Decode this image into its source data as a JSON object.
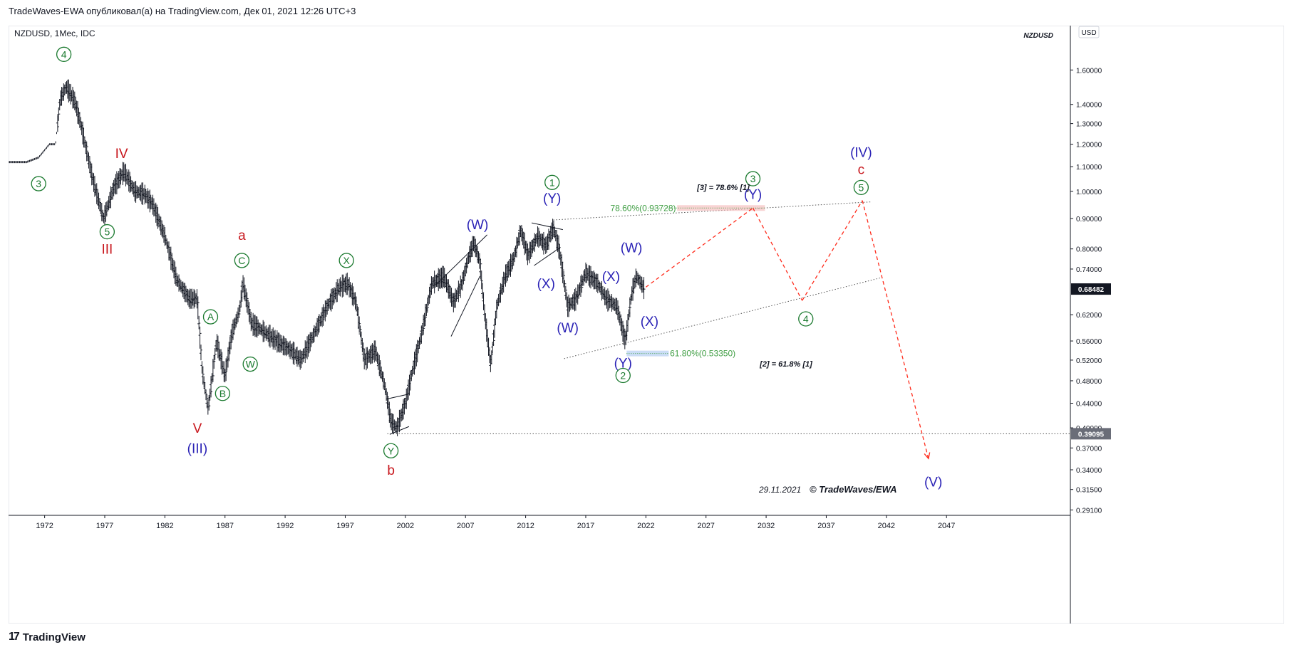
{
  "header": {
    "publisher_line": "TradeWaves-EWA опубликовал(а) на TradingView.com, Дек 01, 2021 12:26 UTC+3"
  },
  "symbol_line": "NZDUSD, 1Мес, IDC",
  "symbol_tag": "NZDUSD",
  "currency_button": "USD",
  "footer": {
    "brand": "TradingView",
    "logo": "17"
  },
  "colors": {
    "green": "#1b7a2f",
    "blue": "#2b23b6",
    "red": "#c8181e",
    "fib_green": "#43a047",
    "forecast": "#ff2a1a",
    "price_tag": "#131722"
  },
  "annotations": {
    "date": "29.11.2021",
    "copyright": "© TradeWaves/EWA",
    "fib_top": "78.60%(0.93728)",
    "fib_top_note": "[3] = 78.6% [1]",
    "fib_bottom": "61.80%(0.53350)",
    "fib_bottom_note": "[2] = 61.8% [1]"
  },
  "chart_data": {
    "type": "candlestick",
    "symbol": "NZDUSD",
    "timeframe": "1Мес",
    "source": "IDC",
    "y_scale": "log",
    "y_range": [
      0.285,
      1.9
    ],
    "x_range": [
      1969.0,
      2057.3
    ],
    "x_ticks": [
      "1972",
      "1977",
      "1982",
      "1987",
      "1992",
      "1997",
      "2002",
      "2007",
      "2012",
      "2017",
      "2022",
      "2027",
      "2032",
      "2037",
      "2042",
      "2047"
    ],
    "y_ticks": [
      "1.60000",
      "1.40000",
      "1.30000",
      "1.20000",
      "1.10000",
      "1.00000",
      "0.90000",
      "0.80000",
      "0.74000",
      "0.62000",
      "0.56000",
      "0.52000",
      "0.48000",
      "0.44000",
      "0.40000",
      "0.37000",
      "0.34000",
      "0.31500",
      "0.29100"
    ],
    "y_tick_values": [
      1.6,
      1.4,
      1.3,
      1.2,
      1.1,
      1.0,
      0.9,
      0.8,
      0.74,
      0.62,
      0.56,
      0.52,
      0.48,
      0.44,
      0.4,
      0.37,
      0.34,
      0.315,
      0.291
    ],
    "last_price": "0.68482",
    "last_price_value": 0.68482,
    "support_price": "0.39095",
    "support_price_value": 0.39095,
    "price_path": [
      [
        1969.0,
        1.12
      ],
      [
        1970.5,
        1.12
      ],
      [
        1971.5,
        1.14
      ],
      [
        1972.4,
        1.2
      ],
      [
        1972.9,
        1.2
      ],
      [
        1973.3,
        1.43
      ],
      [
        1973.8,
        1.5
      ],
      [
        1974.5,
        1.42
      ],
      [
        1975.0,
        1.3
      ],
      [
        1976.0,
        1.05
      ],
      [
        1976.9,
        0.9
      ],
      [
        1977.8,
        1.02
      ],
      [
        1978.6,
        1.08
      ],
      [
        1979.5,
        1.0
      ],
      [
        1980.3,
        0.99
      ],
      [
        1981.0,
        0.95
      ],
      [
        1982.0,
        0.84
      ],
      [
        1983.0,
        0.71
      ],
      [
        1984.0,
        0.66
      ],
      [
        1984.7,
        0.66
      ],
      [
        1985.1,
        0.5
      ],
      [
        1985.6,
        0.43
      ],
      [
        1986.3,
        0.56
      ],
      [
        1987.0,
        0.49
      ],
      [
        1987.6,
        0.58
      ],
      [
        1988.2,
        0.63
      ],
      [
        1988.5,
        0.7
      ],
      [
        1989.2,
        0.6
      ],
      [
        1990.3,
        0.58
      ],
      [
        1991.3,
        0.56
      ],
      [
        1992.5,
        0.54
      ],
      [
        1993.3,
        0.52
      ],
      [
        1994.3,
        0.57
      ],
      [
        1995.5,
        0.64
      ],
      [
        1996.5,
        0.69
      ],
      [
        1997.2,
        0.7
      ],
      [
        1997.9,
        0.65
      ],
      [
        1998.6,
        0.52
      ],
      [
        1999.5,
        0.54
      ],
      [
        2000.3,
        0.47
      ],
      [
        2000.8,
        0.41
      ],
      [
        2001.3,
        0.4
      ],
      [
        2002.0,
        0.44
      ],
      [
        2002.6,
        0.5
      ],
      [
        2003.3,
        0.57
      ],
      [
        2004.2,
        0.7
      ],
      [
        2005.2,
        0.72
      ],
      [
        2006.0,
        0.65
      ],
      [
        2006.7,
        0.7
      ],
      [
        2007.3,
        0.78
      ],
      [
        2007.7,
        0.82
      ],
      [
        2008.2,
        0.76
      ],
      [
        2008.6,
        0.62
      ],
      [
        2009.1,
        0.51
      ],
      [
        2009.6,
        0.64
      ],
      [
        2010.3,
        0.72
      ],
      [
        2011.0,
        0.77
      ],
      [
        2011.6,
        0.86
      ],
      [
        2012.2,
        0.78
      ],
      [
        2013.0,
        0.84
      ],
      [
        2013.7,
        0.81
      ],
      [
        2014.3,
        0.87
      ],
      [
        2014.8,
        0.8
      ],
      [
        2015.5,
        0.64
      ],
      [
        2016.2,
        0.66
      ],
      [
        2017.0,
        0.73
      ],
      [
        2018.0,
        0.7
      ],
      [
        2018.7,
        0.66
      ],
      [
        2019.6,
        0.64
      ],
      [
        2020.1,
        0.58
      ],
      [
        2020.3,
        0.56
      ],
      [
        2020.8,
        0.67
      ],
      [
        2021.2,
        0.72
      ],
      [
        2021.6,
        0.7
      ],
      [
        2021.9,
        0.68482
      ]
    ],
    "forecast_path": [
      [
        2022.0,
        0.69
      ],
      [
        2030.9,
        0.93728
      ],
      [
        2035.0,
        0.655
      ],
      [
        2040.0,
        0.965
      ],
      [
        2045.5,
        0.355
      ]
    ],
    "trendlines": [
      {
        "style": "dotted",
        "from": [
          2014.3,
          0.895
        ],
        "to": [
          2040.8,
          0.96
        ]
      },
      {
        "style": "dotted",
        "from": [
          2015.2,
          0.523
        ],
        "to": [
          2041.5,
          0.715
        ]
      },
      {
        "style": "dotted",
        "from": [
          2000.5,
          0.39095
        ],
        "to": [
          2057.3,
          0.39095
        ]
      },
      {
        "style": "solid",
        "from": [
          2004.5,
          0.695
        ],
        "to": [
          2008.8,
          0.845
        ]
      },
      {
        "style": "solid",
        "from": [
          2005.8,
          0.57
        ],
        "to": [
          2008.2,
          0.72
        ]
      },
      {
        "style": "solid",
        "from": [
          2012.5,
          0.885
        ],
        "to": [
          2015.1,
          0.862
        ]
      },
      {
        "style": "solid",
        "from": [
          2012.7,
          0.75
        ],
        "to": [
          2014.9,
          0.805
        ]
      },
      {
        "style": "solid",
        "from": [
          2000.7,
          0.39
        ],
        "to": [
          2002.3,
          0.402
        ]
      },
      {
        "style": "solid",
        "from": [
          2000.4,
          0.447
        ],
        "to": [
          2002.1,
          0.455
        ]
      }
    ],
    "fib_levels": [
      {
        "label": "78.60%(0.93728)",
        "value": 0.93728
      },
      {
        "label": "61.80%(0.53350)",
        "value": 0.5335
      }
    ],
    "wave_labels": [
      {
        "text": "4",
        "circled": true,
        "color": "green",
        "x": 1973.6,
        "y": 1.7
      },
      {
        "text": "3",
        "circled": true,
        "color": "green",
        "x": 1971.5,
        "y": 1.03
      },
      {
        "text": "IV",
        "circled": false,
        "color": "red",
        "x": 1978.4,
        "y": 1.16
      },
      {
        "text": "5",
        "circled": true,
        "color": "green",
        "x": 1977.2,
        "y": 0.855
      },
      {
        "text": "III",
        "circled": false,
        "color": "red",
        "x": 1977.2,
        "y": 0.8
      },
      {
        "text": "a",
        "circled": false,
        "color": "red",
        "x": 1988.4,
        "y": 0.845
      },
      {
        "text": "C",
        "circled": true,
        "color": "green",
        "x": 1988.4,
        "y": 0.765
      },
      {
        "text": "X",
        "circled": true,
        "color": "green",
        "x": 1997.1,
        "y": 0.765
      },
      {
        "text": "A",
        "circled": true,
        "color": "green",
        "x": 1985.8,
        "y": 0.615
      },
      {
        "text": "W",
        "circled": true,
        "color": "green",
        "x": 1989.1,
        "y": 0.512
      },
      {
        "text": "B",
        "circled": true,
        "color": "green",
        "x": 1986.8,
        "y": 0.457
      },
      {
        "text": "V",
        "circled": false,
        "color": "red",
        "x": 1984.7,
        "y": 0.4
      },
      {
        "text": "(III)",
        "circled": false,
        "color": "blue",
        "x": 1984.7,
        "y": 0.37
      },
      {
        "text": "Y",
        "circled": true,
        "color": "green",
        "x": 2000.8,
        "y": 0.366
      },
      {
        "text": "b",
        "circled": false,
        "color": "red",
        "x": 2000.8,
        "y": 0.34
      },
      {
        "text": "(W)",
        "circled": false,
        "color": "blue",
        "x": 2008.0,
        "y": 0.88
      },
      {
        "text": "1",
        "circled": true,
        "color": "green",
        "x": 2014.2,
        "y": 1.035
      },
      {
        "text": "(Y)",
        "circled": false,
        "color": "blue",
        "x": 2014.2,
        "y": 0.975
      },
      {
        "text": "(X)",
        "circled": false,
        "color": "blue",
        "x": 2013.7,
        "y": 0.7
      },
      {
        "text": "(W)",
        "circled": false,
        "color": "blue",
        "x": 2015.5,
        "y": 0.59
      },
      {
        "text": "(X)",
        "circled": false,
        "color": "blue",
        "x": 2019.1,
        "y": 0.72
      },
      {
        "text": "(W)",
        "circled": false,
        "color": "blue",
        "x": 2020.8,
        "y": 0.805
      },
      {
        "text": "(X)",
        "circled": false,
        "color": "blue",
        "x": 2022.3,
        "y": 0.605
      },
      {
        "text": "(Y)",
        "circled": false,
        "color": "blue",
        "x": 2020.1,
        "y": 0.515
      },
      {
        "text": "2",
        "circled": true,
        "color": "green",
        "x": 2020.1,
        "y": 0.49
      },
      {
        "text": "3",
        "circled": true,
        "color": "green",
        "x": 2030.9,
        "y": 1.05
      },
      {
        "text": "(Y)",
        "circled": false,
        "color": "blue",
        "x": 2030.9,
        "y": 0.99
      },
      {
        "text": "4",
        "circled": true,
        "color": "green",
        "x": 2035.3,
        "y": 0.61
      },
      {
        "text": "(IV)",
        "circled": false,
        "color": "blue",
        "x": 2039.9,
        "y": 1.165
      },
      {
        "text": "c",
        "circled": false,
        "color": "red",
        "x": 2039.9,
        "y": 1.09
      },
      {
        "text": "5",
        "circled": true,
        "color": "green",
        "x": 2039.9,
        "y": 1.015
      },
      {
        "text": "(V)",
        "circled": false,
        "color": "blue",
        "x": 2045.9,
        "y": 0.325
      }
    ]
  }
}
